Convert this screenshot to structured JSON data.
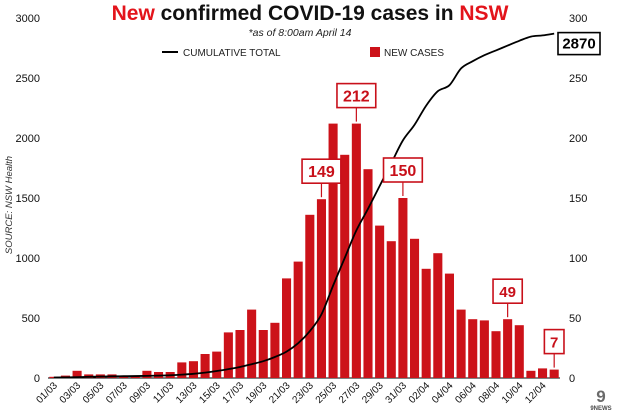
{
  "chart_data": {
    "type": "bar",
    "title_highlight_start": "New",
    "title_middle": " confirmed COVID-19 cases in ",
    "title_highlight_end": "NSW",
    "subtitle": "*as of 8:00am April 14",
    "source": "SOURCE: NSW Health",
    "legend": {
      "line_label": "CUMULATIVE TOTAL",
      "bar_label": "NEW CASES"
    },
    "dates": [
      "01/03",
      "02/03",
      "03/03",
      "04/03",
      "05/03",
      "06/03",
      "07/03",
      "08/03",
      "09/03",
      "10/03",
      "11/03",
      "12/03",
      "13/03",
      "14/03",
      "15/03",
      "16/03",
      "17/03",
      "18/03",
      "19/03",
      "20/03",
      "21/03",
      "22/03",
      "23/03",
      "24/03",
      "25/03",
      "26/03",
      "27/03",
      "28/03",
      "29/03",
      "30/03",
      "31/03",
      "01/04",
      "02/04",
      "03/04",
      "04/04",
      "05/04",
      "06/04",
      "07/04",
      "08/04",
      "09/04",
      "10/04",
      "11/04",
      "12/04",
      "13/04"
    ],
    "x_tick_labels": [
      "01/03",
      "03/03",
      "05/03",
      "07/03",
      "09/03",
      "11/03",
      "13/03",
      "15/03",
      "17/03",
      "19/03",
      "21/03",
      "23/03",
      "25/03",
      "27/03",
      "29/03",
      "31/03",
      "02/04",
      "04/04",
      "06/04",
      "08/04",
      "10/04",
      "12/04"
    ],
    "new_cases": [
      1,
      2,
      6,
      3,
      3,
      3,
      2,
      2,
      6,
      5,
      5,
      13,
      14,
      20,
      22,
      38,
      40,
      57,
      40,
      46,
      83,
      97,
      136,
      149,
      212,
      186,
      212,
      174,
      127,
      114,
      150,
      116,
      91,
      104,
      87,
      57,
      49,
      48,
      39,
      49,
      44,
      6,
      8,
      7
    ],
    "cumulative": [
      4,
      5,
      7,
      10,
      12,
      14,
      15,
      16,
      18,
      20,
      23,
      28,
      35,
      45,
      58,
      74,
      92,
      115,
      140,
      175,
      220,
      290,
      390,
      530,
      770,
      1000,
      1230,
      1410,
      1600,
      1790,
      1980,
      2110,
      2270,
      2390,
      2440,
      2580,
      2640,
      2690,
      2730,
      2770,
      2810,
      2845,
      2855,
      2870
    ],
    "left_axis": {
      "ylim": [
        0,
        3000
      ],
      "ticks": [
        0,
        500,
        1000,
        1500,
        2000,
        2500,
        3000
      ]
    },
    "right_axis": {
      "ylim": [
        0,
        300
      ],
      "ticks": [
        0,
        50,
        100,
        150,
        200,
        250,
        300
      ]
    },
    "annotations": [
      {
        "label": "149",
        "date": "24/03"
      },
      {
        "label": "212",
        "date": "27/03"
      },
      {
        "label": "150",
        "date": "31/03"
      },
      {
        "label": "49",
        "date": "09/04"
      },
      {
        "label": "7",
        "date": "13/04"
      }
    ],
    "total_label": "2870",
    "grid": false,
    "colors": {
      "bar": "#cc1219",
      "line": "#000000",
      "highlight": "#e3141b"
    }
  },
  "logo": {
    "label": "9NEWS"
  }
}
